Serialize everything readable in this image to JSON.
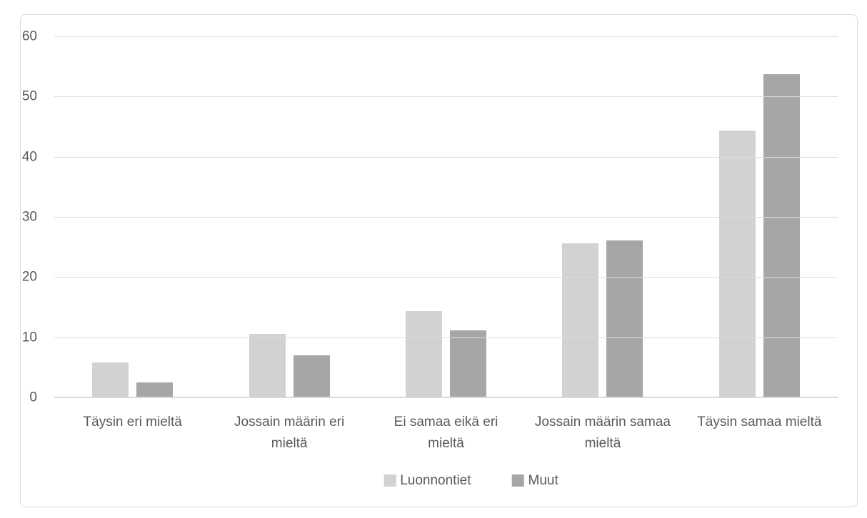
{
  "chart_data": {
    "type": "bar",
    "title": "",
    "xlabel": "",
    "ylabel": "",
    "categories": [
      "Täysin eri mieltä",
      "Jossain määrin eri mieltä",
      "Ei samaa eikä eri mieltä",
      "Jossain määrin samaa mieltä",
      "Täysin samaa mieltä"
    ],
    "series": [
      {
        "name": "Luonnontiet",
        "color": "#d2d2d2",
        "values": [
          5.8,
          10.5,
          14.4,
          25.6,
          44.4
        ]
      },
      {
        "name": "Muut",
        "color": "#a6a6a6",
        "values": [
          2.5,
          7.0,
          11.1,
          26.1,
          53.7
        ]
      }
    ],
    "ylim": [
      0,
      60
    ],
    "y_ticks": [
      0,
      10,
      20,
      30,
      40,
      50,
      60
    ],
    "grid": true,
    "legend_position": "bottom-center",
    "colors": {
      "text": "#595959",
      "gridline": "#dcdcdc",
      "axis_line": "#d9d9d9",
      "frame_border": "#d9d9d9",
      "background": "#ffffff"
    }
  }
}
